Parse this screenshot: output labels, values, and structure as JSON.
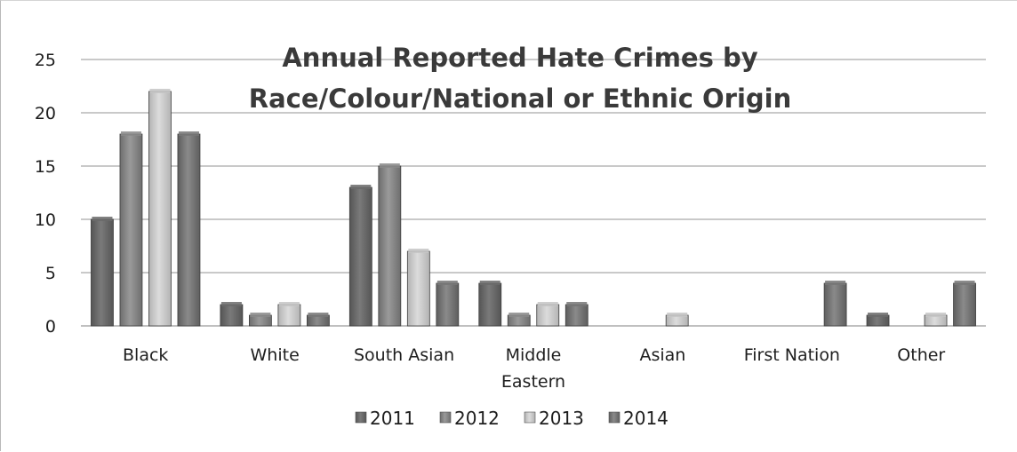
{
  "chart_data": {
    "type": "bar",
    "title_lines": [
      "Annual Reported Hate Crimes by",
      "Race/Colour/National or Ethnic Origin"
    ],
    "categories": [
      [
        "Black"
      ],
      [
        "White"
      ],
      [
        "South Asian"
      ],
      [
        "Middle",
        "Eastern"
      ],
      [
        "Asian"
      ],
      [
        "First Nation"
      ],
      [
        "Other"
      ]
    ],
    "series": [
      {
        "name": "2011",
        "color": "#6b6b6b",
        "values": [
          10,
          2,
          13,
          4,
          0,
          0,
          1
        ]
      },
      {
        "name": "2012",
        "color": "#8a8a8a",
        "values": [
          18,
          1,
          15,
          1,
          0,
          0,
          0
        ]
      },
      {
        "name": "2013",
        "color": "#c6c6c6",
        "values": [
          22,
          2,
          7,
          2,
          1,
          0,
          1
        ]
      },
      {
        "name": "2014",
        "color": "#777777",
        "values": [
          18,
          1,
          4,
          2,
          0,
          4,
          4
        ]
      }
    ],
    "yticks": [
      0,
      5,
      10,
      15,
      20,
      25
    ],
    "ylim": [
      0,
      25
    ],
    "grid": true,
    "legend_position": "bottom"
  }
}
